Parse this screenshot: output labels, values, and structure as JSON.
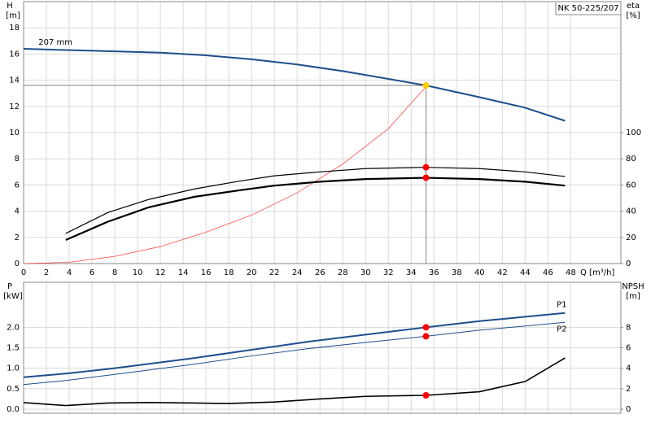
{
  "chart_data": [
    {
      "type": "line",
      "title": "NK 50-225/207",
      "y_label": "H",
      "y_unit": "[m]",
      "y2_label": "eta",
      "y2_unit": "[%]",
      "x_label": "Q [m³/h]",
      "xlim": [
        0,
        52.4
      ],
      "xticks": [
        0,
        2,
        4,
        6,
        8,
        10,
        12,
        14,
        16,
        18,
        20,
        22,
        24,
        26,
        28,
        30,
        32,
        34,
        36,
        38,
        40,
        42,
        44,
        46,
        48
      ],
      "show_xtick_labels": true,
      "ylim": [
        0,
        20
      ],
      "yticks": [
        0,
        2,
        4,
        6,
        8,
        10,
        12,
        14,
        16,
        18
      ],
      "y2lim": [
        0,
        200
      ],
      "y2ticks": [
        0,
        20,
        40,
        60,
        80,
        100
      ],
      "grid": true,
      "crosshair": true,
      "annotations": [
        {
          "text": "207 mm",
          "x": 1.3,
          "y": 16.9
        }
      ],
      "series": [
        {
          "color": "#1f4e8c",
          "line_width": 2,
          "x": [
            0,
            4,
            8,
            12,
            16,
            20,
            24,
            28,
            32,
            35.3,
            40,
            44,
            47.5
          ],
          "y": [
            16.4,
            16.3,
            16.2,
            16.1,
            15.9,
            15.6,
            15.2,
            14.7,
            14.1,
            13.6,
            12.7,
            11.9,
            10.9
          ]
        },
        {
          "color": "#ff4d4d",
          "line_width": 0.8,
          "x": [
            0,
            4,
            8,
            12,
            16,
            20,
            24,
            28,
            32,
            35.3
          ],
          "y": [
            0,
            0.1,
            0.55,
            1.3,
            2.4,
            3.7,
            5.4,
            7.6,
            10.3,
            13.5
          ]
        },
        {
          "color": "#000000",
          "line_width": 1.2,
          "axis": "y2",
          "x": [
            3.7,
            7.4,
            11,
            15,
            19,
            22,
            26,
            30,
            35.3,
            40,
            44,
            47.5
          ],
          "y": [
            23,
            39,
            49,
            57,
            63,
            67,
            70,
            72.5,
            73.5,
            72.5,
            70,
            66.5
          ]
        },
        {
          "color": "#000000",
          "line_width": 2.2,
          "axis": "y2",
          "x": [
            3.7,
            7.4,
            11,
            15,
            19,
            22,
            26,
            30,
            35.3,
            40,
            44,
            47.5
          ],
          "y": [
            18,
            32,
            43,
            51,
            56,
            59.5,
            62.5,
            64.5,
            65.5,
            64.5,
            62.5,
            59.5
          ]
        }
      ],
      "markers": [
        {
          "x": 35.3,
          "y": 13.6,
          "color": "#ffcc00"
        },
        {
          "x": 35.3,
          "y": 73.5,
          "axis": "y2",
          "color": "#ff0000"
        },
        {
          "x": 35.3,
          "y": 65.5,
          "axis": "y2",
          "color": "#ff0000"
        }
      ]
    },
    {
      "type": "line",
      "y_label": "P",
      "y_unit": "[kW]",
      "y2_label": "NPSH",
      "y2_unit": "[m]",
      "xlim": [
        0,
        52.4
      ],
      "xticks": [
        0,
        2,
        4,
        6,
        8,
        10,
        12,
        14,
        16,
        18,
        20,
        22,
        24,
        26,
        28,
        30,
        32,
        34,
        36,
        38,
        40,
        42,
        44,
        46,
        48
      ],
      "show_xtick_labels": false,
      "ylim": [
        -0.1,
        3.1
      ],
      "yticks": [
        {
          "value": 0,
          "label": "0.0"
        },
        0.5,
        {
          "value": 1,
          "label": "1.0"
        },
        1.5,
        {
          "value": 2,
          "label": "2.0"
        }
      ],
      "y2lim": [
        -0.4,
        12.4
      ],
      "y2ticks": [
        0,
        2,
        4,
        6,
        8
      ],
      "grid": true,
      "crosshair": false,
      "series": [
        {
          "name": "P1",
          "color": "#1f4e8c",
          "line_width": 2,
          "x": [
            0,
            3.7,
            8,
            15,
            20,
            25,
            30,
            35.3,
            40,
            47.5
          ],
          "y": [
            0.78,
            0.87,
            1,
            1.25,
            1.45,
            1.65,
            1.82,
            2,
            2.15,
            2.35
          ]
        },
        {
          "name": "P2",
          "color": "#1f4e8c",
          "line_width": 1,
          "x": [
            0,
            3.7,
            8,
            15,
            20,
            25,
            30,
            35.3,
            40,
            47.5
          ],
          "y": [
            0.6,
            0.7,
            0.85,
            1.1,
            1.3,
            1.48,
            1.63,
            1.78,
            1.93,
            2.12
          ]
        },
        {
          "color": "#000000",
          "line_width": 1.6,
          "axis": "y2",
          "x": [
            0,
            3.7,
            7.4,
            11,
            15,
            18,
            22,
            26,
            30,
            35.3,
            40,
            44,
            47.5
          ],
          "y": [
            0.64,
            0.35,
            0.6,
            0.65,
            0.6,
            0.55,
            0.7,
            1,
            1.25,
            1.35,
            1.7,
            2.7,
            5
          ]
        }
      ],
      "markers": [
        {
          "x": 35.3,
          "y": 2,
          "color": "#ff0000"
        },
        {
          "x": 35.3,
          "y": 1.78,
          "color": "#ff0000"
        },
        {
          "x": 35.3,
          "y": 1.35,
          "axis": "y2",
          "color": "#ff0000"
        }
      ]
    }
  ]
}
